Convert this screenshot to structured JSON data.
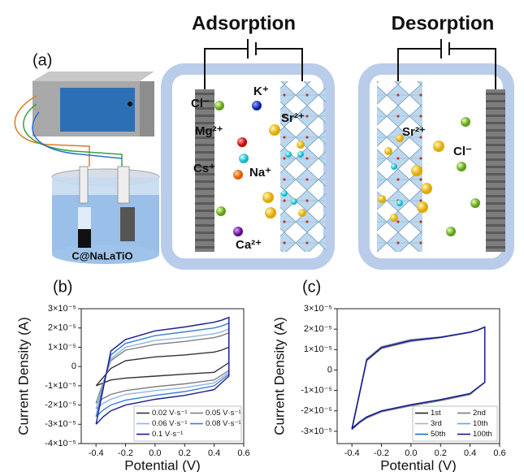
{
  "panel_labels": [
    "(a)",
    "(b)",
    "(c)"
  ],
  "schematic": {
    "electrode_label": "C@NaLaTiO",
    "adsorption": {
      "title": "Adsorption",
      "ions": [
        "Cl⁻",
        "K⁺",
        "Sr²⁺",
        "Mg²⁺",
        "Cs⁺",
        "Na⁺",
        "Ca²⁺"
      ]
    },
    "desorption": {
      "title": "Desorption",
      "ions": [
        "Sr²⁺",
        "Cl⁻"
      ]
    }
  },
  "chart_data": [
    {
      "type": "line",
      "x_label": "Potential (V)",
      "y_label": "Current Density (A)",
      "x": [
        -0.4,
        -0.3,
        -0.2,
        0,
        0.2,
        0.4,
        0.45,
        0.5,
        0.5,
        0.4,
        0.2,
        0,
        -0.2,
        -0.3,
        -0.35,
        -0.4
      ],
      "xlim": [
        -0.5,
        0.6
      ],
      "xticks": [
        -0.4,
        -0.2,
        {
          "value": 0,
          "label": "0.0"
        },
        0.2,
        0.4,
        0.6
      ],
      "ylim": [
        -4e-05,
        3e-05
      ],
      "yticks": [
        {
          "value": 3e-05,
          "label": "3×10⁻⁵"
        },
        {
          "value": 2e-05,
          "label": "2×10⁻⁵"
        },
        {
          "value": 1e-05,
          "label": "1×10⁻⁵"
        },
        0,
        {
          "value": -1e-05,
          "label": "-1×10⁻⁵"
        },
        {
          "value": -2e-05,
          "label": "-2×10⁻⁵"
        },
        {
          "value": -3e-05,
          "label": "-3×10⁻⁵"
        },
        {
          "value": -4e-05,
          "label": "-4×10⁻⁵"
        }
      ],
      "legend": "lower right",
      "legend_columns": 2,
      "series": [
        {
          "name": "0.02 V·s⁻¹",
          "color": "#333333",
          "values": [
            -1e-05,
            -1e-06,
            3e-06,
            5e-06,
            6e-06,
            7.5e-06,
            8.5e-06,
            1e-05,
            2e-06,
            -3e-06,
            -4e-06,
            -5e-06,
            -6e-06,
            -7e-06,
            -8.5e-06,
            -1e-05
          ]
        },
        {
          "name": "0.05 V·s⁻¹",
          "color": "#808080",
          "values": [
            -1.9e-05,
            3e-06,
            8.5e-06,
            1.15e-05,
            1.3e-05,
            1.5e-05,
            1.6e-05,
            1.75e-05,
            -2e-06,
            -7e-06,
            -9e-06,
            -1.05e-05,
            -1.25e-05,
            -1.45e-05,
            -1.65e-05,
            -1.9e-05
          ]
        },
        {
          "name": "0.06 V·s⁻¹",
          "color": "#8fb3e0",
          "values": [
            -2.2e-05,
            4e-06,
            1e-05,
            1.35e-05,
            1.5e-05,
            1.7e-05,
            1.8e-05,
            1.95e-05,
            -3e-06,
            -8.5e-06,
            -1.1e-05,
            -1.25e-05,
            -1.45e-05,
            -1.7e-05,
            -1.9e-05,
            -2.2e-05
          ]
        },
        {
          "name": "0.08 V·s⁻¹",
          "color": "#3a7fd5",
          "values": [
            -2.6e-05,
            6e-06,
            1.2e-05,
            1.6e-05,
            1.8e-05,
            2e-05,
            2.1e-05,
            2.25e-05,
            -4e-06,
            -1e-05,
            -1.3e-05,
            -1.5e-05,
            -1.75e-05,
            -2e-05,
            -2.25e-05,
            -2.6e-05
          ]
        },
        {
          "name": "0.1 V·s⁻¹",
          "color": "#1c1c8f",
          "values": [
            -3e-05,
            8e-06,
            1.4e-05,
            1.85e-05,
            2.05e-05,
            2.3e-05,
            2.4e-05,
            2.55e-05,
            -5e-06,
            -1.2e-05,
            -1.5e-05,
            -1.7e-05,
            -2e-05,
            -2.3e-05,
            -2.6e-05,
            -3e-05
          ]
        }
      ]
    },
    {
      "type": "line",
      "x_label": "Potential (V)",
      "y_label": "Current Density (A)",
      "x": [
        -0.4,
        -0.3,
        -0.2,
        0,
        0.2,
        0.4,
        0.45,
        0.5,
        0.5,
        0.4,
        0.2,
        0,
        -0.2,
        -0.3,
        -0.35,
        -0.4
      ],
      "xlim": [
        -0.5,
        0.6
      ],
      "xticks": [
        -0.4,
        -0.2,
        {
          "value": 0,
          "label": "0.0"
        },
        0.2,
        0.4,
        0.6
      ],
      "ylim": [
        -3.6e-05,
        3e-05
      ],
      "yticks": [
        {
          "value": 3e-05,
          "label": "3×10⁻⁵"
        },
        {
          "value": 2e-05,
          "label": "2×10⁻⁵"
        },
        {
          "value": 1e-05,
          "label": "1×10⁻⁵"
        },
        0,
        {
          "value": -1e-05,
          "label": "-1×10⁻⁵"
        },
        {
          "value": -2e-05,
          "label": "-2×10⁻⁵"
        },
        {
          "value": -3e-05,
          "label": "-3×10⁻⁵"
        }
      ],
      "legend": "lower right",
      "legend_columns": 2,
      "series": [
        {
          "name": "1st",
          "color": "#222222",
          "values": [
            -2.85e-05,
            5e-06,
            1.1e-05,
            1.45e-05,
            1.6e-05,
            1.85e-05,
            1.95e-05,
            2.1e-05,
            -6e-06,
            -1.15e-05,
            -1.45e-05,
            -1.7e-05,
            -2e-05,
            -2.3e-05,
            -2.55e-05,
            -2.85e-05
          ]
        },
        {
          "name": "2nd",
          "color": "#7a7a7a",
          "values": [
            -2.9e-05,
            4.5e-06,
            1.05e-05,
            1.4e-05,
            1.58e-05,
            1.84e-05,
            1.95e-05,
            2.1e-05,
            -6e-06,
            -1.2e-05,
            -1.5e-05,
            -1.75e-05,
            -2.05e-05,
            -2.35e-05,
            -2.6e-05,
            -2.9e-05
          ]
        },
        {
          "name": "3rd",
          "color": "#b0b0b0",
          "values": [
            -2.9e-05,
            5.5e-06,
            1.15e-05,
            1.5e-05,
            1.62e-05,
            1.86e-05,
            1.96e-05,
            2.1e-05,
            -6e-06,
            -1.15e-05,
            -1.45e-05,
            -1.7e-05,
            -2e-05,
            -2.3e-05,
            -2.55e-05,
            -2.9e-05
          ]
        },
        {
          "name": "10th",
          "color": "#6fa0dc",
          "values": [
            -2.9e-05,
            5e-06,
            1.1e-05,
            1.45e-05,
            1.6e-05,
            1.85e-05,
            1.95e-05,
            2.1e-05,
            -6e-06,
            -1.15e-05,
            -1.45e-05,
            -1.7e-05,
            -2e-05,
            -2.3e-05,
            -2.55e-05,
            -2.9e-05
          ]
        },
        {
          "name": "50th",
          "color": "#1f6fd0",
          "values": [
            -2.9e-05,
            5e-06,
            1.1e-05,
            1.45e-05,
            1.6e-05,
            1.85e-05,
            1.95e-05,
            2.1e-05,
            -6e-06,
            -1.15e-05,
            -1.45e-05,
            -1.7e-05,
            -2e-05,
            -2.3e-05,
            -2.55e-05,
            -2.9e-05
          ]
        },
        {
          "name": "100th",
          "color": "#1a1a8c",
          "values": [
            -2.9e-05,
            5e-06,
            1.1e-05,
            1.45e-05,
            1.6e-05,
            1.85e-05,
            1.95e-05,
            2.1e-05,
            -6e-06,
            -1.15e-05,
            -1.45e-05,
            -1.7e-05,
            -2e-05,
            -2.3e-05,
            -2.55e-05,
            -2.9e-05
          ]
        }
      ]
    }
  ]
}
